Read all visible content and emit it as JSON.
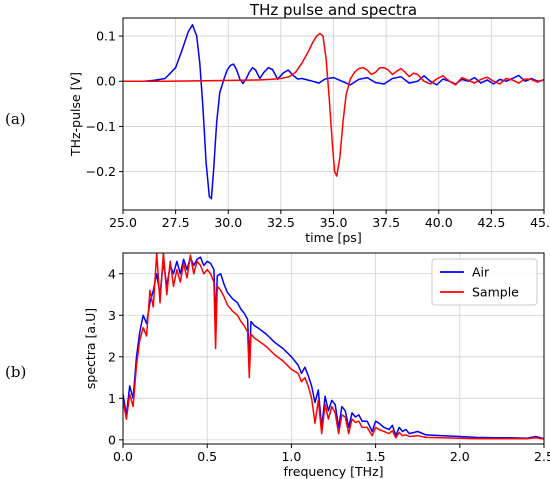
{
  "figure": {
    "panel_a_label": "(a)",
    "panel_b_label": "(b)"
  },
  "chart_data": [
    {
      "type": "line",
      "title": "THz pulse and spectra",
      "xlabel": "time [ps]",
      "ylabel": "THz-pulse [V]",
      "xlim": [
        25.0,
        45.0
      ],
      "ylim": [
        -0.285,
        0.14
      ],
      "grid": true,
      "xticks": [
        25.0,
        27.5,
        30.0,
        32.5,
        35.0,
        37.5,
        40.0,
        42.5,
        45.0
      ],
      "xtick_labels": [
        "25.0",
        "27.5",
        "30.0",
        "32.5",
        "35.0",
        "37.5",
        "40.0",
        "42.5",
        "45.0"
      ],
      "yticks": [
        0.1,
        0.0,
        -0.1,
        -0.2
      ],
      "ytick_labels": [
        "0.1",
        "0.0",
        "−0.1",
        "−0.2"
      ],
      "colors": {
        "air": "#0000ff",
        "sample": "#ff0000"
      },
      "series": [
        {
          "key": "air",
          "x": [
            25.0,
            26.0,
            26.5,
            27.0,
            27.5,
            27.8,
            28.1,
            28.3,
            28.5,
            28.65,
            28.8,
            28.95,
            29.1,
            29.2,
            29.3,
            29.45,
            29.6,
            29.8,
            29.95,
            30.1,
            30.25,
            30.4,
            30.55,
            30.7,
            30.85,
            31.0,
            31.15,
            31.3,
            31.5,
            31.7,
            31.9,
            32.1,
            32.35,
            32.6,
            32.85,
            33.1,
            33.3,
            33.5,
            33.75,
            34.0,
            34.3,
            34.6,
            35.0,
            35.4,
            35.8,
            36.2,
            36.6,
            37.0,
            37.4,
            37.8,
            38.2,
            38.6,
            39.0,
            39.3,
            39.6,
            39.9,
            40.2,
            40.5,
            40.8,
            41.1,
            41.4,
            41.7,
            42.0,
            42.3,
            42.6,
            42.9,
            43.2,
            43.5,
            43.8,
            44.1,
            44.4,
            44.7,
            45.0
          ],
          "y": [
            0.0,
            0.0,
            0.002,
            0.006,
            0.03,
            0.068,
            0.11,
            0.125,
            0.1,
            0.04,
            -0.06,
            -0.18,
            -0.255,
            -0.26,
            -0.2,
            -0.09,
            -0.025,
            0.005,
            0.025,
            0.035,
            0.038,
            0.025,
            0.005,
            -0.005,
            0.005,
            0.02,
            0.03,
            0.025,
            0.006,
            0.02,
            0.03,
            0.026,
            0.004,
            0.018,
            0.025,
            0.012,
            0.005,
            0.006,
            0.003,
            0.0,
            -0.004,
            0.005,
            0.008,
            0.0,
            -0.008,
            0.004,
            0.008,
            -0.003,
            -0.006,
            0.006,
            0.01,
            -0.004,
            0.0,
            0.012,
            0.0,
            -0.008,
            0.005,
            0.0,
            -0.006,
            0.004,
            0.0,
            0.008,
            -0.004,
            0.003,
            -0.006,
            0.004,
            0.0,
            0.006,
            0.013,
            0.0,
            0.006,
            0.0,
            0.002
          ]
        },
        {
          "key": "sample",
          "x": [
            25.0,
            27.0,
            29.0,
            30.5,
            31.5,
            32.0,
            32.5,
            32.9,
            33.2,
            33.5,
            33.8,
            34.0,
            34.2,
            34.35,
            34.5,
            34.65,
            34.8,
            34.95,
            35.05,
            35.15,
            35.3,
            35.45,
            35.6,
            35.8,
            36.0,
            36.2,
            36.4,
            36.6,
            36.8,
            37.0,
            37.2,
            37.4,
            37.6,
            37.8,
            38.0,
            38.2,
            38.4,
            38.6,
            38.8,
            39.0,
            39.3,
            39.6,
            39.9,
            40.2,
            40.5,
            40.8,
            41.1,
            41.4,
            41.7,
            42.0,
            42.3,
            42.6,
            42.9,
            43.2,
            43.5,
            43.8,
            44.1,
            44.4,
            44.7,
            45.0
          ],
          "y": [
            0.0,
            0.0,
            0.001,
            0.002,
            0.003,
            0.004,
            0.006,
            0.01,
            0.02,
            0.04,
            0.065,
            0.085,
            0.1,
            0.106,
            0.1,
            0.05,
            -0.04,
            -0.14,
            -0.2,
            -0.21,
            -0.17,
            -0.09,
            -0.03,
            0.005,
            0.02,
            0.028,
            0.03,
            0.025,
            0.015,
            0.02,
            0.03,
            0.03,
            0.025,
            0.015,
            0.022,
            0.028,
            0.02,
            0.01,
            0.018,
            0.015,
            0.0,
            -0.006,
            0.005,
            0.012,
            0.0,
            -0.008,
            0.008,
            0.002,
            -0.004,
            0.004,
            0.009,
            0.0,
            -0.006,
            0.006,
            0.003,
            -0.004,
            0.005,
            0.004,
            -0.002,
            0.004
          ]
        }
      ]
    },
    {
      "type": "line",
      "xlabel": "frequency [THz]",
      "ylabel": "spectra [a.U]",
      "xlim": [
        0.0,
        2.5
      ],
      "ylim": [
        -0.1,
        4.5
      ],
      "grid": true,
      "legend_position": "top-right",
      "xticks": [
        0.0,
        0.5,
        1.0,
        1.5,
        2.0,
        2.5
      ],
      "xtick_labels": [
        "0.0",
        "0.5",
        "1.0",
        "1.5",
        "2.0",
        "2.5"
      ],
      "yticks": [
        0,
        1,
        2,
        3,
        4
      ],
      "ytick_labels": [
        "0",
        "1",
        "2",
        "3",
        "4"
      ],
      "legend": [
        "Air",
        "Sample"
      ],
      "colors": {
        "air": "#0000ff",
        "sample": "#ff0000"
      },
      "series": [
        {
          "key": "air",
          "name": "Air",
          "x": [
            0.0,
            0.02,
            0.04,
            0.06,
            0.08,
            0.1,
            0.12,
            0.14,
            0.16,
            0.18,
            0.2,
            0.22,
            0.24,
            0.26,
            0.28,
            0.3,
            0.32,
            0.34,
            0.36,
            0.38,
            0.4,
            0.42,
            0.44,
            0.46,
            0.48,
            0.5,
            0.52,
            0.54,
            0.55,
            0.56,
            0.58,
            0.6,
            0.62,
            0.65,
            0.68,
            0.7,
            0.72,
            0.74,
            0.75,
            0.76,
            0.78,
            0.8,
            0.85,
            0.9,
            0.95,
            1.0,
            1.04,
            1.06,
            1.08,
            1.1,
            1.12,
            1.14,
            1.16,
            1.18,
            1.2,
            1.22,
            1.24,
            1.26,
            1.28,
            1.3,
            1.32,
            1.34,
            1.36,
            1.38,
            1.4,
            1.42,
            1.45,
            1.48,
            1.5,
            1.52,
            1.55,
            1.58,
            1.6,
            1.62,
            1.64,
            1.66,
            1.68,
            1.7,
            1.75,
            1.8,
            1.9,
            2.0,
            2.1,
            2.2,
            2.3,
            2.4,
            2.45,
            2.5
          ],
          "y": [
            1.1,
            0.6,
            1.3,
            1.0,
            2.0,
            2.6,
            3.0,
            2.8,
            3.3,
            3.6,
            4.0,
            3.5,
            4.3,
            3.7,
            4.2,
            4.0,
            4.3,
            4.0,
            4.35,
            4.1,
            4.4,
            4.2,
            4.35,
            4.4,
            4.2,
            4.3,
            4.25,
            4.1,
            2.9,
            3.95,
            4.0,
            3.75,
            3.55,
            3.4,
            3.3,
            3.15,
            3.05,
            2.9,
            1.9,
            2.85,
            2.75,
            2.7,
            2.55,
            2.35,
            2.2,
            2.0,
            1.8,
            1.6,
            1.75,
            1.55,
            1.3,
            0.9,
            1.2,
            0.3,
            1.05,
            0.7,
            0.95,
            0.85,
            0.3,
            0.8,
            0.7,
            0.3,
            0.65,
            0.55,
            0.6,
            0.45,
            0.45,
            0.2,
            0.45,
            0.4,
            0.3,
            0.25,
            0.35,
            0.1,
            0.3,
            0.2,
            0.25,
            0.15,
            0.2,
            0.12,
            0.1,
            0.08,
            0.06,
            0.05,
            0.05,
            0.04,
            0.08,
            0.03
          ]
        },
        {
          "key": "sample",
          "name": "Sample",
          "x": [
            0.0,
            0.02,
            0.04,
            0.06,
            0.08,
            0.1,
            0.12,
            0.14,
            0.16,
            0.18,
            0.2,
            0.22,
            0.24,
            0.26,
            0.28,
            0.3,
            0.32,
            0.34,
            0.36,
            0.38,
            0.4,
            0.42,
            0.44,
            0.46,
            0.48,
            0.5,
            0.52,
            0.54,
            0.55,
            0.56,
            0.58,
            0.6,
            0.62,
            0.65,
            0.68,
            0.7,
            0.72,
            0.74,
            0.75,
            0.76,
            0.78,
            0.8,
            0.85,
            0.9,
            0.95,
            1.0,
            1.04,
            1.06,
            1.08,
            1.1,
            1.12,
            1.14,
            1.16,
            1.18,
            1.2,
            1.22,
            1.24,
            1.26,
            1.28,
            1.3,
            1.32,
            1.34,
            1.36,
            1.38,
            1.4,
            1.42,
            1.45,
            1.48,
            1.5,
            1.52,
            1.55,
            1.58,
            1.6,
            1.62,
            1.64,
            1.66,
            1.68,
            1.7,
            1.75,
            1.8,
            1.9,
            2.0,
            2.1,
            2.2,
            2.3,
            2.4,
            2.45,
            2.5
          ],
          "y": [
            0.95,
            0.5,
            1.1,
            0.8,
            1.8,
            2.4,
            2.7,
            2.5,
            3.6,
            3.2,
            4.5,
            3.3,
            4.5,
            3.5,
            4.3,
            3.7,
            4.1,
            3.8,
            4.25,
            3.9,
            4.45,
            4.0,
            4.3,
            4.2,
            4.0,
            4.1,
            4.0,
            3.8,
            2.2,
            3.7,
            3.6,
            3.45,
            3.25,
            3.1,
            3.0,
            2.85,
            2.75,
            2.6,
            1.5,
            2.55,
            2.45,
            2.4,
            2.25,
            2.05,
            1.9,
            1.7,
            1.6,
            1.4,
            1.5,
            1.3,
            1.0,
            0.4,
            0.95,
            0.15,
            0.85,
            0.5,
            0.8,
            0.65,
            0.15,
            0.6,
            0.55,
            0.15,
            0.5,
            0.42,
            0.45,
            0.3,
            0.3,
            0.1,
            0.3,
            0.25,
            0.2,
            0.15,
            0.22,
            0.05,
            0.18,
            0.1,
            0.12,
            0.08,
            0.1,
            0.06,
            0.05,
            0.04,
            0.03,
            0.03,
            0.03,
            0.03,
            0.05,
            0.02
          ]
        }
      ]
    }
  ]
}
